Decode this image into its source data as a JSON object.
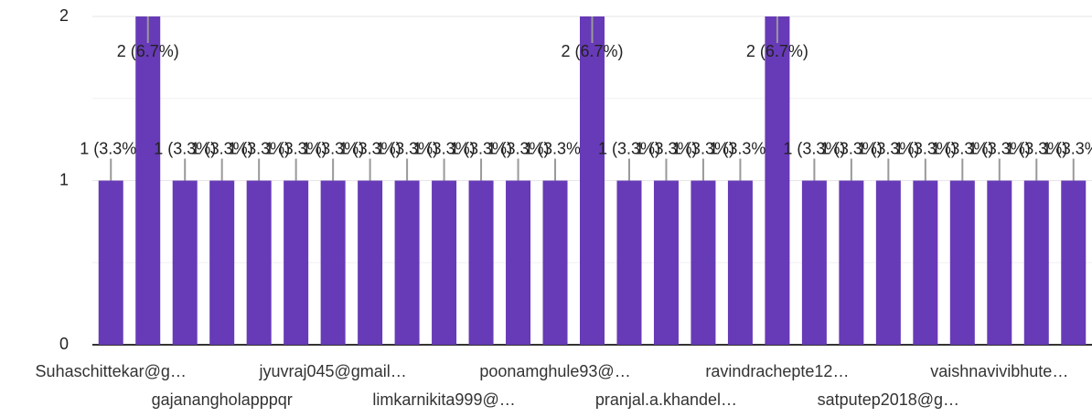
{
  "chart_data": {
    "type": "bar",
    "categories": [
      "Suhaschittekar@g…",
      null,
      null,
      "gajanangholapppqr",
      null,
      null,
      "jyuvraj045@gmail…",
      null,
      null,
      "limkarnikita999@…",
      null,
      null,
      "poonamghule93@…",
      null,
      null,
      "pranjal.a.khandel…",
      null,
      null,
      "ravindrachepte12…",
      null,
      null,
      "satputep2018@g…",
      null,
      null,
      "vaishnavivibhute…",
      null,
      null
    ],
    "values": [
      1,
      2,
      1,
      1,
      1,
      1,
      1,
      1,
      1,
      1,
      1,
      1,
      1,
      2,
      1,
      1,
      1,
      1,
      2,
      1,
      1,
      1,
      1,
      1,
      1,
      1,
      1
    ],
    "value_labels": [
      "1 (3.3%)",
      "2 (6.7%)",
      "1 (3.3%)",
      "1 (3.3%)",
      "1 (3.3%)",
      "1 (3.3%)",
      "1 (3.3%)",
      "1 (3.3%)",
      "1 (3.3%)",
      "1 (3.3%)",
      "1 (3.3%)",
      "1 (3.3%)",
      "1 (3.3%)",
      "2 (6.7%)",
      "1 (3.3%)",
      "1 (3.3%)",
      "1 (3.3%)",
      "1 (3.3%)",
      "2 (6.7%)",
      "1 (3.3%)",
      "1 (3.3%)",
      "1 (3.3%)",
      "1 (3.3%)",
      "1 (3.3%)",
      "1 (3.3%)",
      "1 (3.3%)",
      "1 (3.3%)"
    ],
    "color": "#673ab7",
    "ylim": [
      0,
      2
    ],
    "yticks": [
      0,
      1,
      2
    ],
    "minor_yticks": [
      0.5,
      1.5
    ],
    "grid": true
  }
}
